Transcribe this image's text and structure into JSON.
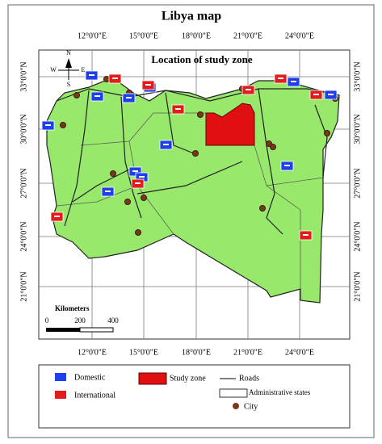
{
  "header": {
    "title": "Libya map"
  },
  "map": {
    "subtitle": "Location of study zone",
    "longitude_labels": [
      "12°0'0\"E",
      "15°0'0\"E",
      "18°0'0\"E",
      "21°0'0\"E",
      "24°0'0\"E"
    ],
    "latitude_labels": [
      "33°0'0\"N",
      "30°0'0\"N",
      "27°0'0\"N",
      "24°0'0\"N",
      "21°0'0\"N"
    ]
  },
  "compass": {
    "north": "N",
    "south": "S",
    "east": "E",
    "west": "W"
  },
  "scale_bar": {
    "title": "Kilometers",
    "ticks": [
      "0",
      "200",
      "400"
    ]
  },
  "legend": {
    "domestic": "Domestic",
    "international": "International",
    "study_zone": "Study zone",
    "roads": "Roads",
    "admin": "Administrative states",
    "city": "City"
  }
}
